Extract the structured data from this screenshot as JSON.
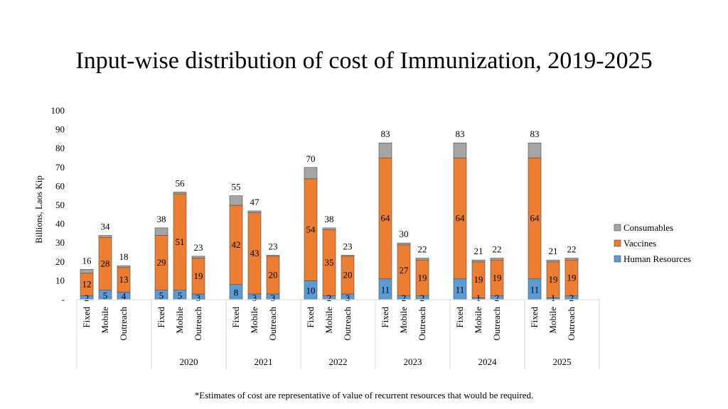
{
  "title": "Input-wise distribution of cost of Immunization, 2019-2025",
  "footnote": "*Estimates of cost are representative of value of recurrent resources that would be required.",
  "colors": {
    "Human Resources": "#5b9bd5",
    "Vaccines": "#ed7d31",
    "Consumables": "#a5a5a5"
  },
  "chart_data": {
    "type": "bar",
    "stacked": true,
    "title": "Input-wise distribution of cost of Immunization, 2019-2025",
    "xlabel": "",
    "ylabel": "Billions, Laos Kip",
    "ylim": [
      0,
      100
    ],
    "yticks": [
      "-",
      "10",
      "20",
      "30",
      "40",
      "50",
      "60",
      "70",
      "80",
      "90",
      "100"
    ],
    "legend": [
      "Consumables",
      "Vaccines",
      "Human Resources"
    ],
    "legend_position": "right",
    "groups": [
      {
        "year": "",
        "bars": [
          {
            "label": "Fixed",
            "hr": 2,
            "vac": 12,
            "cons": 2,
            "total": 16,
            "hr_label": "2",
            "vac_label": "12"
          },
          {
            "label": "Mobile",
            "hr": 5,
            "vac": 28,
            "cons": 1,
            "total": 34,
            "hr_label": "5",
            "vac_label": "28"
          },
          {
            "label": "Outreach",
            "hr": 4,
            "vac": 13,
            "cons": 1,
            "total": 18,
            "hr_label": "4",
            "vac_label": "13"
          }
        ]
      },
      {
        "year": "2020",
        "bars": [
          {
            "label": "Fixed",
            "hr": 5,
            "vac": 29,
            "cons": 4,
            "total": 38,
            "hr_label": "5",
            "vac_label": "29"
          },
          {
            "label": "Mobile",
            "hr": 5,
            "vac": 51,
            "cons": 1,
            "total": 56,
            "hr_label": "5",
            "vac_label": "51"
          },
          {
            "label": "Outreach",
            "hr": 3,
            "vac": 19,
            "cons": 1,
            "total": 23,
            "hr_label": "3",
            "vac_label": "19"
          }
        ]
      },
      {
        "year": "2021",
        "bars": [
          {
            "label": "Fixed",
            "hr": 8,
            "vac": 42,
            "cons": 5,
            "total": 55,
            "hr_label": "8",
            "vac_label": "42"
          },
          {
            "label": "Mobile",
            "hr": 3,
            "vac": 43,
            "cons": 1,
            "total": 47,
            "hr_label": "3",
            "vac_label": "43"
          },
          {
            "label": "Outreach",
            "hr": 3,
            "vac": 20,
            "cons": 0.5,
            "total": 23,
            "hr_label": "3",
            "vac_label": "20"
          }
        ]
      },
      {
        "year": "2022",
        "bars": [
          {
            "label": "Fixed",
            "hr": 10,
            "vac": 54,
            "cons": 6,
            "total": 70,
            "hr_label": "10",
            "vac_label": "54"
          },
          {
            "label": "Mobile",
            "hr": 2,
            "vac": 35,
            "cons": 1,
            "total": 38,
            "hr_label": "2",
            "vac_label": "35"
          },
          {
            "label": "Outreach",
            "hr": 3,
            "vac": 20,
            "cons": 0.5,
            "total": 23,
            "hr_label": "3",
            "vac_label": "20"
          }
        ]
      },
      {
        "year": "2023",
        "bars": [
          {
            "label": "Fixed",
            "hr": 11,
            "vac": 64,
            "cons": 8,
            "total": 83,
            "hr_label": "11",
            "vac_label": "64"
          },
          {
            "label": "Mobile",
            "hr": 2,
            "vac": 27,
            "cons": 1,
            "total": 30,
            "hr_label": "2",
            "vac_label": "27"
          },
          {
            "label": "Outreach",
            "hr": 2,
            "vac": 19,
            "cons": 1,
            "total": 22,
            "hr_label": "2",
            "vac_label": "19"
          }
        ]
      },
      {
        "year": "2024",
        "bars": [
          {
            "label": "Fixed",
            "hr": 11,
            "vac": 64,
            "cons": 8,
            "total": 83,
            "hr_label": "11",
            "vac_label": "64"
          },
          {
            "label": "Mobile",
            "hr": 1,
            "vac": 19,
            "cons": 1,
            "total": 21,
            "hr_label": "1",
            "vac_label": "19"
          },
          {
            "label": "Outreach",
            "hr": 2,
            "vac": 19,
            "cons": 1,
            "total": 22,
            "hr_label": "2",
            "vac_label": "19"
          }
        ]
      },
      {
        "year": "2025",
        "bars": [
          {
            "label": "Fixed",
            "hr": 11,
            "vac": 64,
            "cons": 8,
            "total": 83,
            "hr_label": "11",
            "vac_label": "64"
          },
          {
            "label": "Mobile",
            "hr": 1,
            "vac": 19,
            "cons": 1,
            "total": 21,
            "hr_label": "1",
            "vac_label": "19"
          },
          {
            "label": "Outreach",
            "hr": 2,
            "vac": 19,
            "cons": 1,
            "total": 22,
            "hr_label": "2",
            "vac_label": "19"
          }
        ]
      }
    ]
  }
}
